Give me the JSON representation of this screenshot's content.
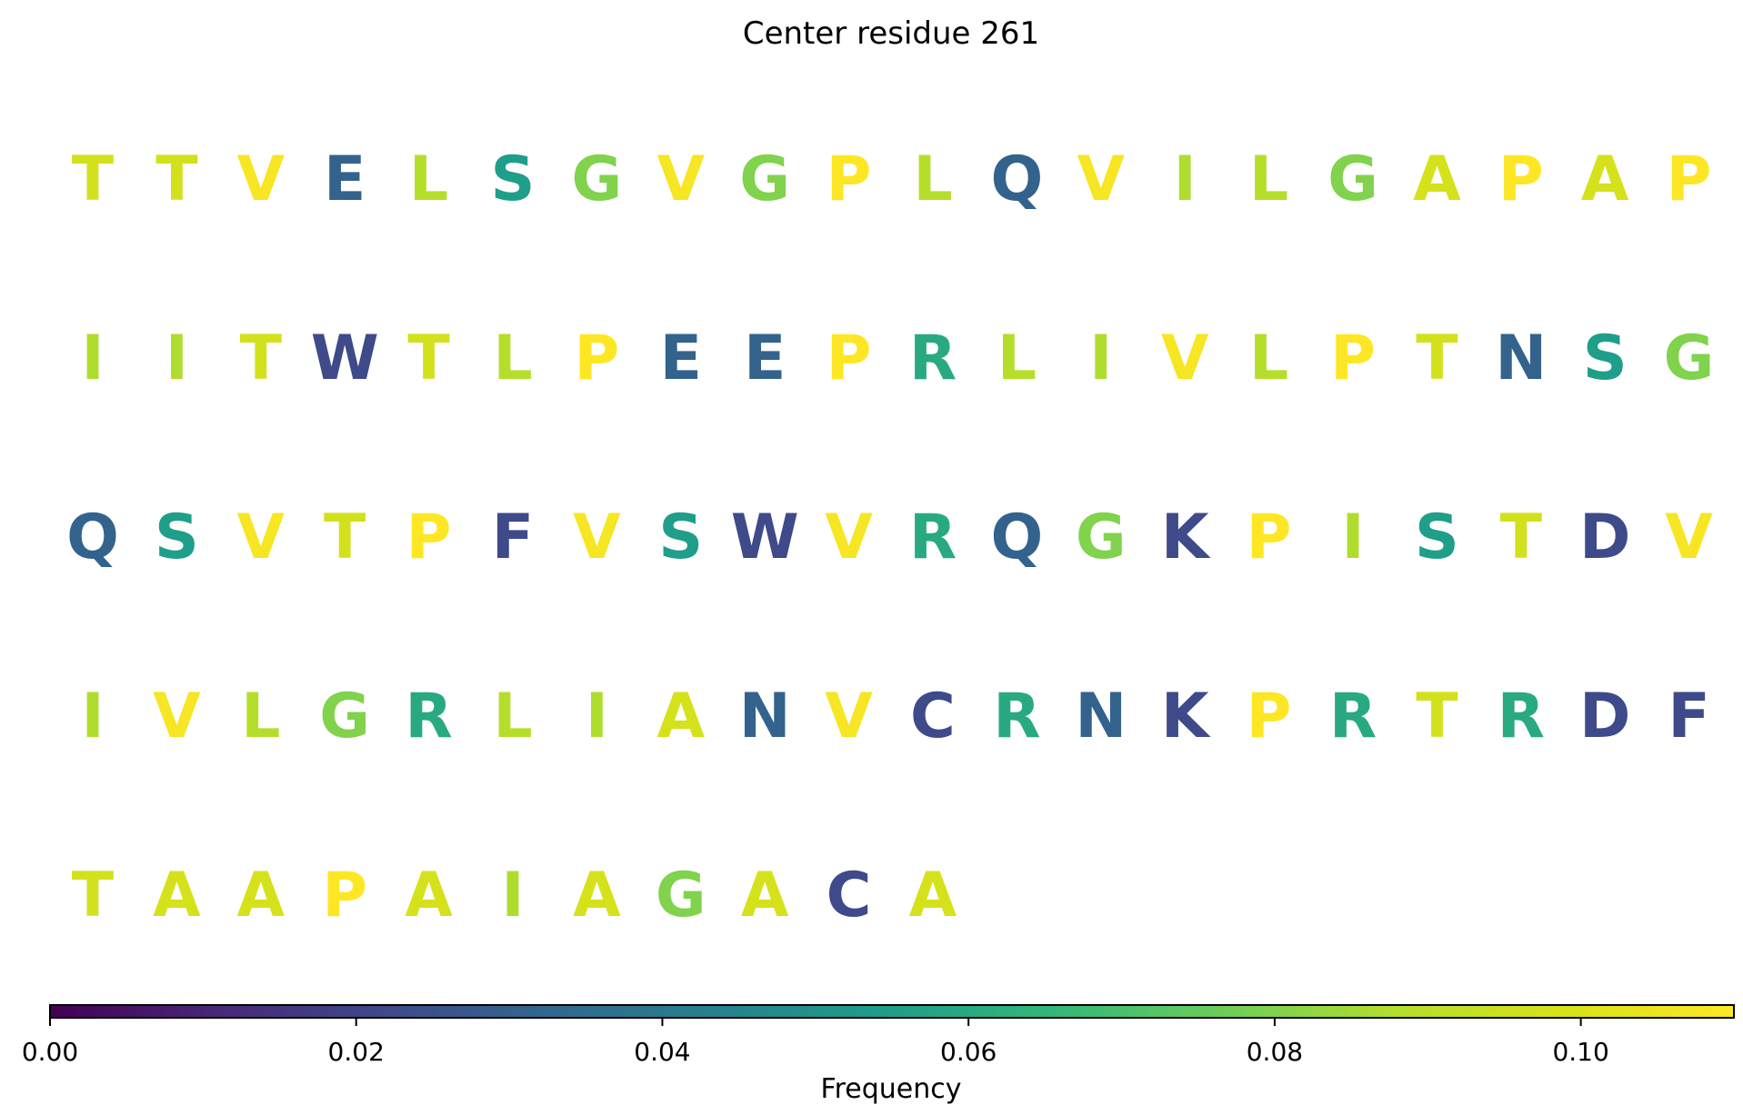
{
  "chart_data": {
    "type": "heatmap",
    "title": "Center residue 261",
    "rows": [
      [
        "T",
        "T",
        "V",
        "E",
        "L",
        "S",
        "G",
        "V",
        "G",
        "P",
        "L",
        "Q",
        "V",
        "I",
        "L",
        "G",
        "A",
        "P",
        "A",
        "P"
      ],
      [
        "I",
        "I",
        "T",
        "W",
        "T",
        "L",
        "P",
        "E",
        "E",
        "P",
        "R",
        "L",
        "I",
        "V",
        "L",
        "P",
        "T",
        "N",
        "S",
        "G"
      ],
      [
        "Q",
        "S",
        "V",
        "T",
        "P",
        "F",
        "V",
        "S",
        "W",
        "V",
        "R",
        "Q",
        "G",
        "K",
        "P",
        "I",
        "S",
        "T",
        "D",
        "V"
      ],
      [
        "I",
        "V",
        "L",
        "G",
        "R",
        "L",
        "I",
        "A",
        "N",
        "V",
        "C",
        "R",
        "N",
        "K",
        "P",
        "R",
        "T",
        "R",
        "D",
        "F"
      ],
      [
        "T",
        "A",
        "A",
        "P",
        "A",
        "I",
        "A",
        "G",
        "A",
        "C",
        "A"
      ]
    ],
    "frequencies": {
      "A": 0.098,
      "C": 0.022,
      "D": 0.022,
      "E": 0.031,
      "F": 0.022,
      "G": 0.08,
      "I": 0.087,
      "K": 0.022,
      "L": 0.088,
      "N": 0.031,
      "P": 0.11,
      "Q": 0.031,
      "R": 0.06,
      "S": 0.055,
      "T": 0.097,
      "V": 0.108,
      "W": 0.022
    },
    "colorbar": {
      "label": "Frequency",
      "range": [
        0,
        0.11
      ],
      "ticks": [
        0,
        0.02,
        0.04,
        0.06,
        0.08,
        0.1
      ],
      "tick_labels": [
        "0.00",
        "0.02",
        "0.04",
        "0.06",
        "0.08",
        "0.10"
      ],
      "colormap": "viridis"
    }
  }
}
